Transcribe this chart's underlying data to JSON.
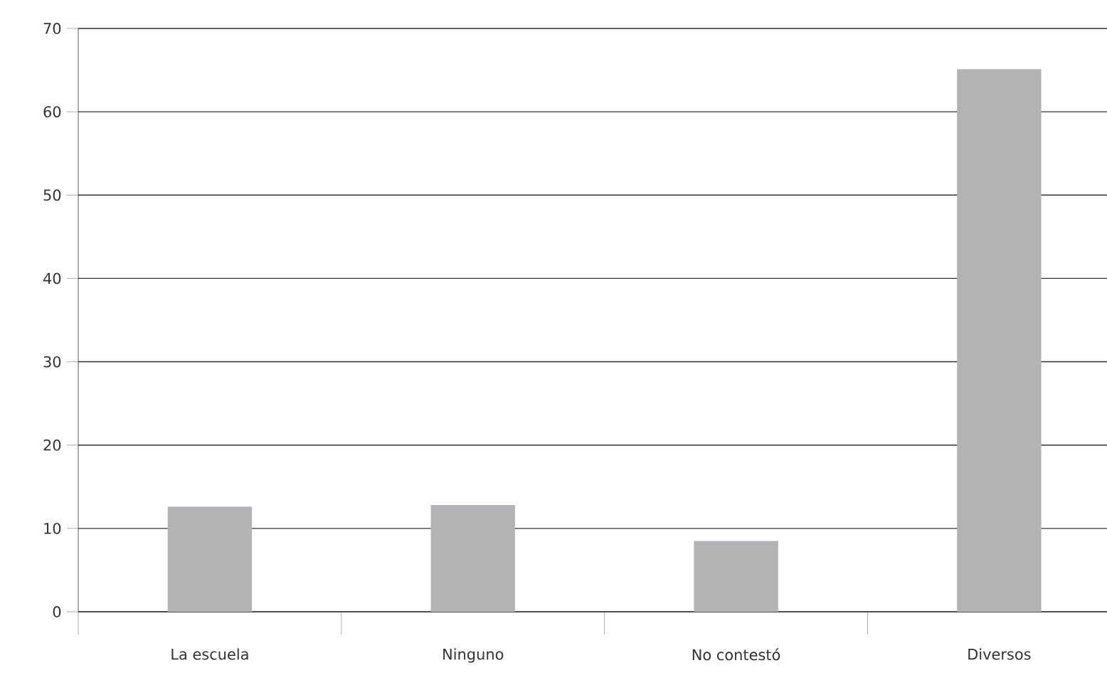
{
  "chart_data": {
    "type": "bar",
    "categories": [
      "La escuela",
      "Ninguno",
      "No contestó",
      "Diversos"
    ],
    "values": [
      12.6,
      12.8,
      8.5,
      65.1
    ],
    "color": "#b2b3b5",
    "ylim": [
      0,
      70
    ],
    "yticks": [
      0,
      10,
      20,
      30,
      40,
      50,
      60,
      70
    ],
    "grid": "y"
  }
}
